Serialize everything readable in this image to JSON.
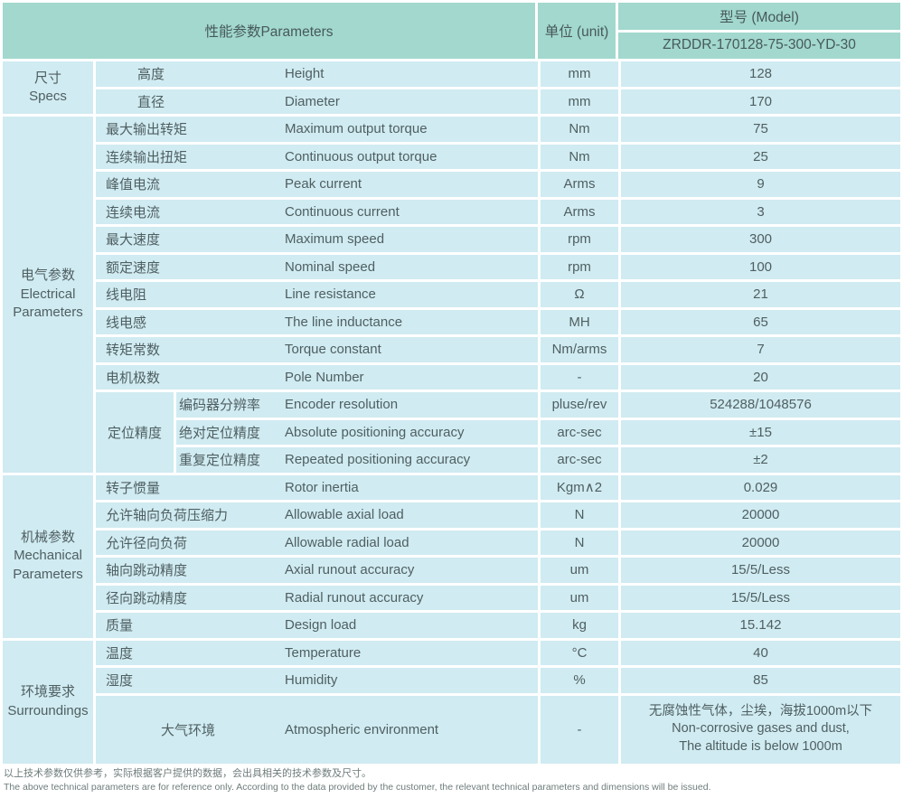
{
  "header": {
    "parameters": "性能参数Parameters",
    "unit": "单位 (unit)",
    "model_label": "型号 (Model)",
    "model_value": "ZRDDR-170128-75-300-YD-30"
  },
  "sections": [
    {
      "category": {
        "cn": "尺寸",
        "en": "Specs"
      },
      "rows": [
        {
          "cn": "高度",
          "en": "Height",
          "unit": "mm",
          "value": "128"
        },
        {
          "cn": "直径",
          "en": "Diameter",
          "unit": "mm",
          "value": "170"
        }
      ]
    },
    {
      "category": {
        "cn": "电气参数",
        "en": "Electrical",
        "en2": "Parameters"
      },
      "rows": [
        {
          "cn": "最大输出转矩",
          "en": "Maximum output torque",
          "unit": "Nm",
          "value": "75"
        },
        {
          "cn": "连续输出扭矩",
          "en": "Continuous output torque",
          "unit": "Nm",
          "value": "25"
        },
        {
          "cn": "峰值电流",
          "en": "Peak current",
          "unit": "Arms",
          "value": "9"
        },
        {
          "cn": "连续电流",
          "en": "Continuous current",
          "unit": "Arms",
          "value": "3"
        },
        {
          "cn": "最大速度",
          "en": "Maximum speed",
          "unit": "rpm",
          "value": "300"
        },
        {
          "cn": "额定速度",
          "en": "Nominal speed",
          "unit": "rpm",
          "value": "100"
        },
        {
          "cn": "线电阻",
          "en": "Line resistance",
          "unit": "Ω",
          "value": "21"
        },
        {
          "cn": "线电感",
          "en": "The line inductance",
          "unit": "MH",
          "value": "65"
        },
        {
          "cn": "转矩常数",
          "en": "Torque constant",
          "unit": "Nm/arms",
          "value": "7"
        },
        {
          "cn": "电机极数",
          "en": "Pole Number",
          "unit": "-",
          "value": "20"
        }
      ],
      "subgroup": {
        "label": "定位精度",
        "rows": [
          {
            "cn": "编码器分辨率",
            "en": "Encoder resolution",
            "unit": "pluse/rev",
            "value": "524288/1048576"
          },
          {
            "cn": "绝对定位精度",
            "en": "Absolute positioning accuracy",
            "unit": "arc-sec",
            "value": "±15"
          },
          {
            "cn": "重复定位精度",
            "en": "Repeated positioning accuracy",
            "unit": "arc-sec",
            "value": "±2"
          }
        ]
      }
    },
    {
      "category": {
        "cn": "机械参数",
        "en": "Mechanical",
        "en2": "Parameters"
      },
      "rows": [
        {
          "cn": "转子惯量",
          "en": "Rotor inertia",
          "unit": "Kgm∧2",
          "value": "0.029"
        },
        {
          "cn": "允许轴向负荷压缩力",
          "en": "Allowable axial load",
          "unit": "N",
          "value": "20000"
        },
        {
          "cn": "允许径向负荷",
          "en": "Allowable radial load",
          "unit": "N",
          "value": "20000"
        },
        {
          "cn": "轴向跳动精度",
          "en": "Axial runout accuracy",
          "unit": "um",
          "value": "15/5/Less"
        },
        {
          "cn": "径向跳动精度",
          "en": "Radial runout accuracy",
          "unit": "um",
          "value": "15/5/Less"
        },
        {
          "cn": "质量",
          "en": "Design load",
          "unit": "kg",
          "value": "15.142"
        }
      ]
    },
    {
      "category": {
        "cn": "环境要求",
        "en": "Surroundings"
      },
      "rows": [
        {
          "cn": "温度",
          "en": "Temperature",
          "unit": "°C",
          "value": "40"
        },
        {
          "cn": "湿度",
          "en": "Humidity",
          "unit": "%",
          "value": "85"
        },
        {
          "cn": "大气环境",
          "en": "Atmospheric environment",
          "unit": "-",
          "value_lines": [
            "无腐蚀性气体，尘埃，海拔1000m以下",
            "Non-corrosive gases and dust,",
            "The altitude is below 1000m"
          ]
        }
      ]
    }
  ],
  "footer": {
    "cn": "以上技术参数仅供参考，实际根据客户提供的数据，会出具相关的技术参数及尺寸。",
    "en": "The above technical parameters are for reference only. According to the data provided by the customer, the relevant technical parameters and dimensions will be issued."
  },
  "colors": {
    "header_bg": "#a2d8ce",
    "row_bg": "#d0ebf2",
    "border": "#ffffff",
    "text": "#4f5f61"
  }
}
